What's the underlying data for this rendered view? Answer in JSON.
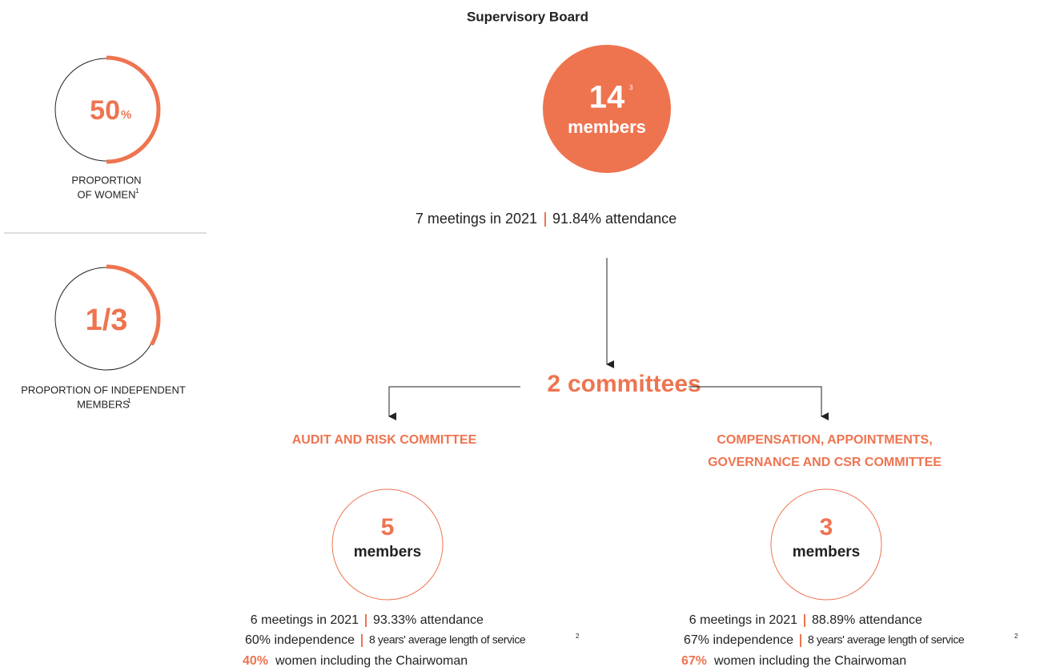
{
  "title": "Supervisory Board",
  "stats": [
    {
      "value": "50",
      "unit": "%",
      "label_lines": [
        "PROPORTION",
        "OF WOMEN"
      ],
      "note": "1"
    },
    {
      "value": "1/3",
      "label_lines": [
        "PROPORTION OF INDEPENDENT",
        "MEMBERS"
      ],
      "note": "1"
    }
  ],
  "board": {
    "count": "14",
    "note": "3",
    "unit": "members",
    "meetings": "7 meetings in 2021",
    "attendance": "91.84% attendance"
  },
  "committees_heading": {
    "count": "2",
    "label": "committees"
  },
  "committees": [
    {
      "name_lines": [
        "AUDIT AND RISK COMMITTEE"
      ],
      "count": "5",
      "unit": "members",
      "meetings": "6 meetings in 2021",
      "attendance": "93.33% attendance",
      "independence": "60% independence",
      "service": "8 years' average length of service",
      "service_note": "2",
      "women": "40%",
      "women_text": "women including the Chairwoman"
    },
    {
      "name_lines": [
        "COMPENSATION, APPOINTMENTS,",
        "GOVERNANCE AND CSR COMMITTEE"
      ],
      "count": "3",
      "unit": "members",
      "meetings": "6 meetings in 2021",
      "attendance": "88.89% attendance",
      "independence": "67% independence",
      "service": "8 years' average length of service",
      "service_note": "2",
      "women": "67%",
      "women_text": "women including the Chairwoman"
    }
  ]
}
